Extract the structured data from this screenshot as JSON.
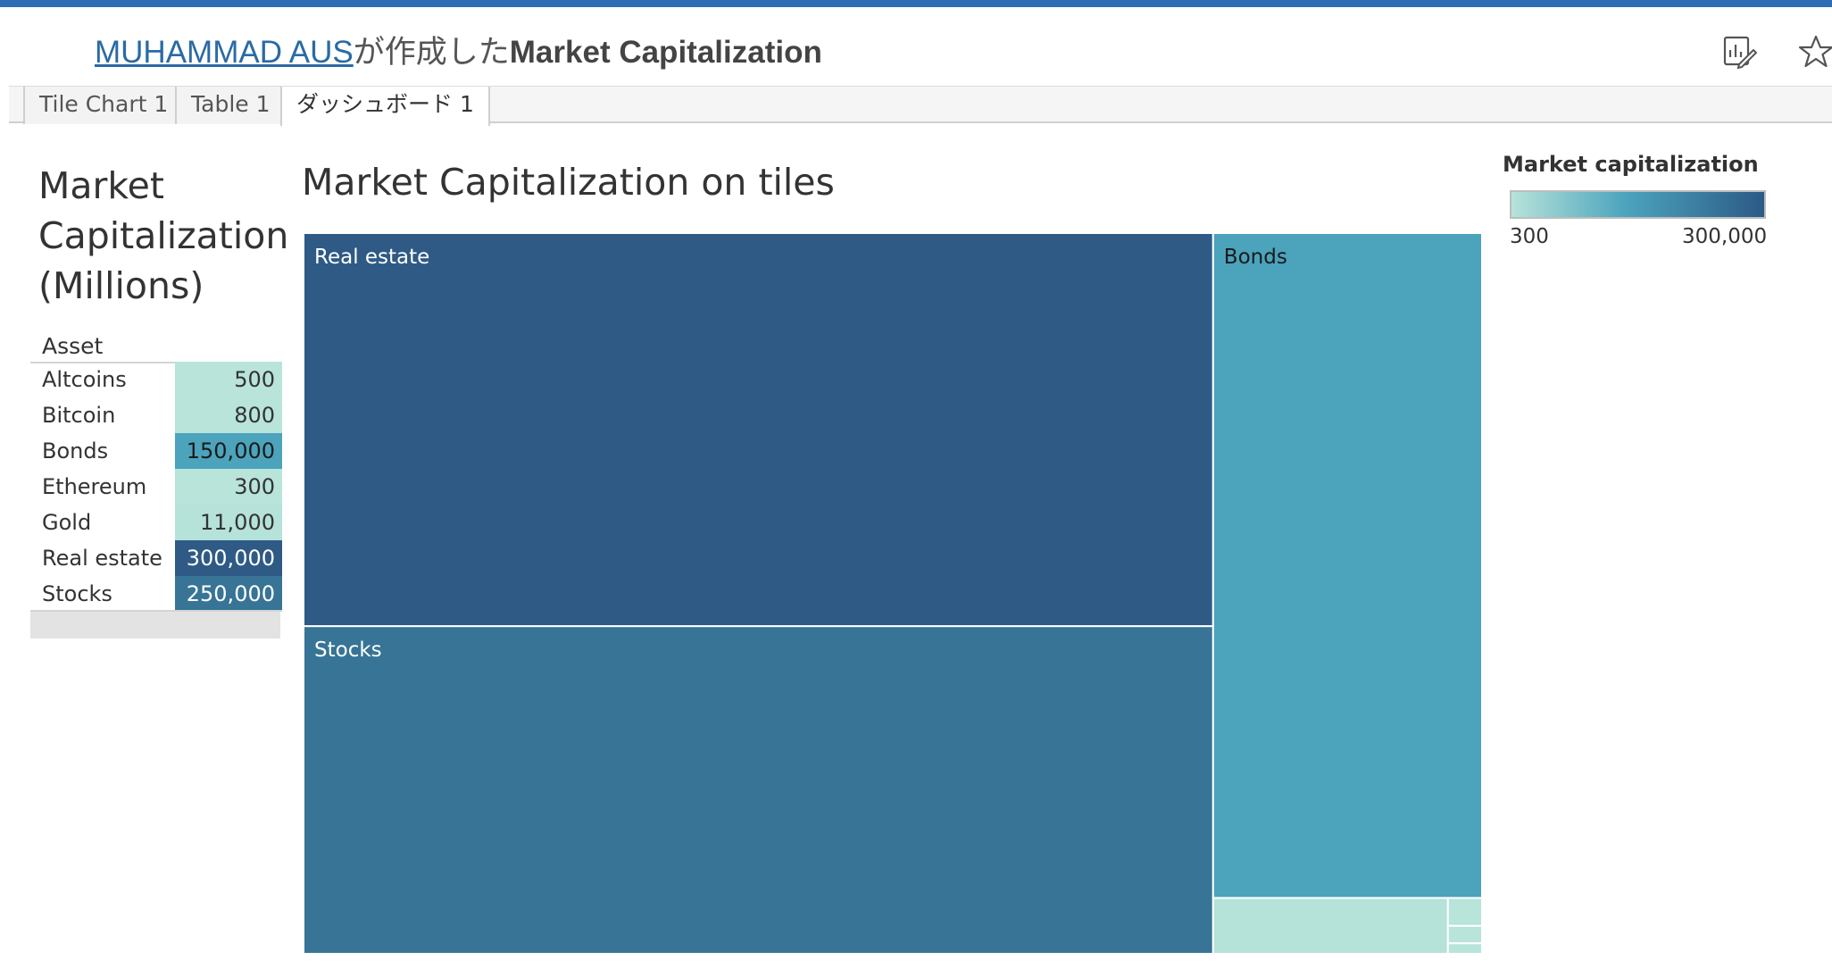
{
  "header": {
    "author": "MUHAMMAD AUS",
    "created_by_text": "が作成した",
    "workbook_title": "Market Capitalization",
    "icons": [
      "edit-sheet-icon",
      "star-icon"
    ]
  },
  "tabs": [
    {
      "label": "Tile Chart 1",
      "active": false
    },
    {
      "label": "Table 1",
      "active": false
    },
    {
      "label": "ダッシュボード 1",
      "active": true
    }
  ],
  "side_table": {
    "title": "Market Capitalization (Millions)",
    "column_header": "Asset",
    "rows": [
      {
        "asset": "Altcoins",
        "value": "500",
        "color": "#b8e4da",
        "text_color": "#333333"
      },
      {
        "asset": "Bitcoin",
        "value": "800",
        "color": "#b8e4da",
        "text_color": "#333333"
      },
      {
        "asset": "Bonds",
        "value": "150,000",
        "color": "#4ba3bc",
        "text_color": "#1a1a1a"
      },
      {
        "asset": "Ethereum",
        "value": "300",
        "color": "#b8e4da",
        "text_color": "#333333"
      },
      {
        "asset": "Gold",
        "value": "11,000",
        "color": "#b5e2d9",
        "text_color": "#333333"
      },
      {
        "asset": "Real estate",
        "value": "300,000",
        "color": "#2e5a85",
        "text_color": "#ffffff"
      },
      {
        "asset": "Stocks",
        "value": "250,000",
        "color": "#377496",
        "text_color": "#ffffff"
      }
    ]
  },
  "chart_title": "Market Capitalization on tiles",
  "chart_data": {
    "type": "treemap",
    "title": "Market Capitalization on tiles",
    "items": [
      {
        "name": "Real estate",
        "value": 300000,
        "color": "#2e5a85",
        "label_color": "#ffffff"
      },
      {
        "name": "Stocks",
        "value": 250000,
        "color": "#377496",
        "label_color": "#ffffff"
      },
      {
        "name": "Bonds",
        "value": 150000,
        "color": "#4ba3bc",
        "label_color": "#1a1a1a"
      },
      {
        "name": "Gold",
        "value": 11000,
        "color": "#b5e2d9",
        "label_color": ""
      },
      {
        "name": "Bitcoin",
        "value": 800,
        "color": "#b8e4da",
        "label_color": ""
      },
      {
        "name": "Altcoins",
        "value": 500,
        "color": "#b8e4da",
        "label_color": ""
      },
      {
        "name": "Ethereum",
        "value": 300,
        "color": "#b8e4da",
        "label_color": ""
      }
    ],
    "labeled_items": [
      "Real estate",
      "Stocks",
      "Bonds"
    ]
  },
  "legend": {
    "title": "Market capitalization",
    "min_label": "300",
    "max_label": "300,000",
    "colors": [
      "#b7e3da",
      "#4ca4bd",
      "#2b5a86"
    ]
  }
}
